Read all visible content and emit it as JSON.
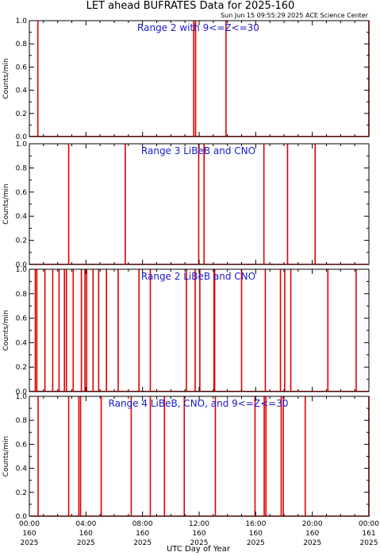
{
  "title": "LET ahead BUFRATES Data for 2025-160",
  "timestamp": "Sun Jun 15 09:55:29 2025 ACE Science Center",
  "xlabel": "UTC Day of Year",
  "colors": {
    "data": "#e00000",
    "panel_title": "#1a1acc",
    "axes": "#000000",
    "background": "#ffffff"
  },
  "chart_data": [
    {
      "type": "line",
      "panel_title": "Range 2 with 9<=Z<=30",
      "ylabel": "Counts/min",
      "xlim": [
        0,
        24
      ],
      "ylim": [
        0,
        1.0
      ],
      "y_ticks": [
        "0.0",
        "0.2",
        "0.4",
        "0.6",
        "0.8",
        "1.0"
      ],
      "spikes_hours": [
        0.6,
        11.62,
        11.75,
        13.9,
        24.0
      ]
    },
    {
      "type": "line",
      "panel_title": "Range 3 LiBeB and CNO",
      "ylabel": "Counts/min",
      "xlim": [
        0,
        24
      ],
      "ylim": [
        0,
        1.0
      ],
      "y_ticks": [
        "0.0",
        "0.2",
        "0.4",
        "0.6",
        "0.8",
        "1.0"
      ],
      "spikes_hours": [
        2.78,
        6.78,
        11.97,
        12.35,
        16.58,
        18.25,
        20.2
      ]
    },
    {
      "type": "line",
      "panel_title": "Range 2 LiBeB and CNO",
      "ylabel": "Counts/min",
      "xlim": [
        0,
        24
      ],
      "ylim": [
        0,
        1.0
      ],
      "y_ticks": [
        "0.0",
        "0.2",
        "0.4",
        "0.6",
        "0.8",
        "1.0"
      ],
      "spikes_hours": [
        0.42,
        0.53,
        1.1,
        1.65,
        2.1,
        2.48,
        2.62,
        3.1,
        3.68,
        3.93,
        4.05,
        4.5,
        4.9,
        5.45,
        6.28,
        7.75,
        8.55,
        11.1,
        11.72,
        12.05,
        13.05,
        13.1,
        15.0,
        16.68,
        17.75,
        18.05,
        18.48,
        21.1,
        23.1
      ]
    },
    {
      "type": "line",
      "panel_title": "Range 4 LiBeB, CNO, and 9<=Z<=30",
      "ylabel": "Counts/min",
      "xlim": [
        0,
        24
      ],
      "ylim": [
        0,
        1.0
      ],
      "y_ticks": [
        "0.0",
        "0.2",
        "0.4",
        "0.6",
        "0.8",
        "1.0"
      ],
      "spikes_hours": [
        0.62,
        2.78,
        3.5,
        3.62,
        5.08,
        7.2,
        8.55,
        9.55,
        10.95,
        13.15,
        15.95,
        16.6,
        16.72,
        17.8,
        17.95,
        19.5,
        24.0
      ]
    }
  ],
  "x_ticks": [
    {
      "hour": 0,
      "time": "00:00",
      "doy": "160",
      "year": "2025"
    },
    {
      "hour": 4,
      "time": "04:00",
      "doy": "160",
      "year": "2025"
    },
    {
      "hour": 8,
      "time": "08:00",
      "doy": "160",
      "year": "2025"
    },
    {
      "hour": 12,
      "time": "12:00",
      "doy": "160",
      "year": "2025"
    },
    {
      "hour": 16,
      "time": "16:00",
      "doy": "160",
      "year": "2025"
    },
    {
      "hour": 20,
      "time": "20:00",
      "doy": "160",
      "year": "2025"
    },
    {
      "hour": 24,
      "time": "00:00",
      "doy": "161",
      "year": "2025"
    }
  ]
}
